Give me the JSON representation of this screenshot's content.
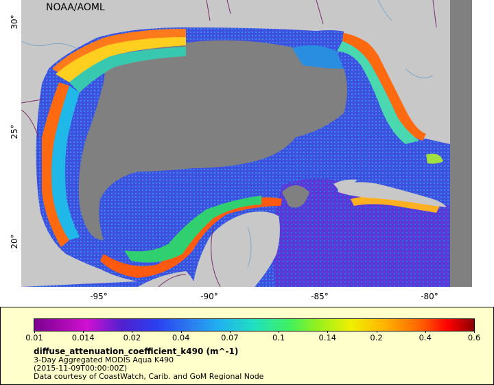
{
  "map": {
    "credit": "NOAA/AOML",
    "lat_ticks": [
      "30°",
      "25°",
      "20°"
    ],
    "lon_ticks": [
      "-95°",
      "-90°",
      "-85°",
      "-80°"
    ],
    "land_color": "#c8c8c8",
    "nodata_color": "#808080",
    "border_color": "#7a2a6a",
    "river_color": "#7fa8c8"
  },
  "legend": {
    "tick_labels": [
      "0.01",
      "0.014",
      "0.02",
      "0.04",
      "0.07",
      "0.1",
      "0.14",
      "0.2",
      "0.4",
      "0.6"
    ],
    "variable": "diffuse_attenuation_coefficient_k490 (m^-1)",
    "description": "3-Day Aggregated MODIS Aqua K490",
    "time": "(2015-11-09T00:00:00Z)",
    "source": "Data courtesy of CoastWatch, Carib. and GoM Regional Node"
  }
}
